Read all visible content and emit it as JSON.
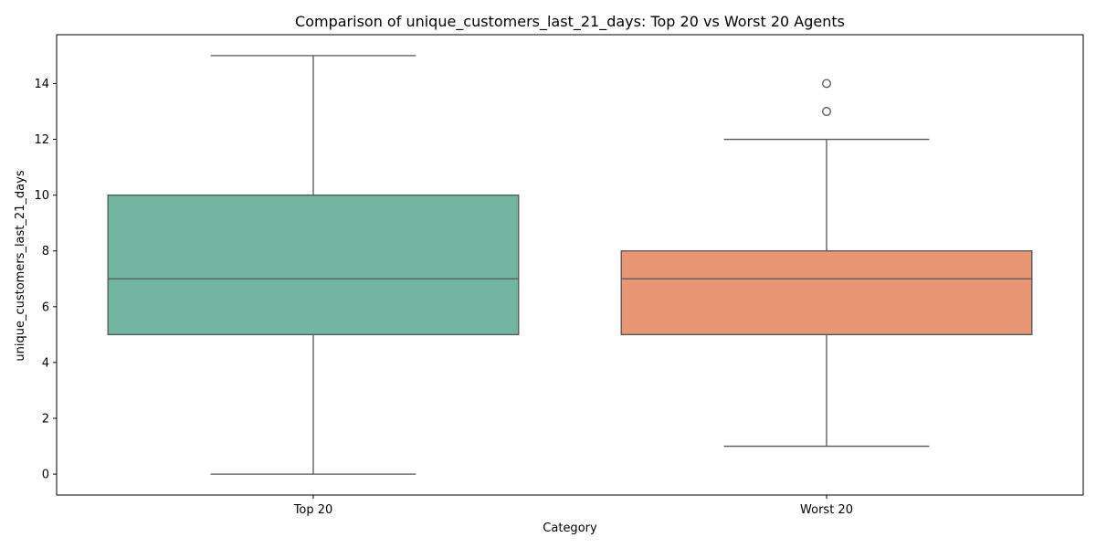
{
  "chart_data": {
    "type": "box",
    "title": "Comparison of unique_customers_last_21_days: Top 20 vs Worst 20 Agents",
    "xlabel": "Category",
    "ylabel": "unique_customers_last_21_days",
    "ylim": [
      -0.75,
      15.75
    ],
    "yticks": [
      0,
      2,
      4,
      6,
      8,
      10,
      12,
      14
    ],
    "grid": false,
    "categories": [
      "Top 20",
      "Worst 20"
    ],
    "boxes": [
      {
        "category": "Top 20",
        "whisker_low": 0,
        "q1": 5,
        "median": 7,
        "q3": 10,
        "whisker_high": 15,
        "outliers": [],
        "color": "#72b6a1"
      },
      {
        "category": "Worst 20",
        "whisker_low": 1,
        "q1": 5,
        "median": 7,
        "q3": 8,
        "whisker_high": 12,
        "outliers": [
          13,
          14
        ],
        "color": "#e99675"
      }
    ]
  }
}
